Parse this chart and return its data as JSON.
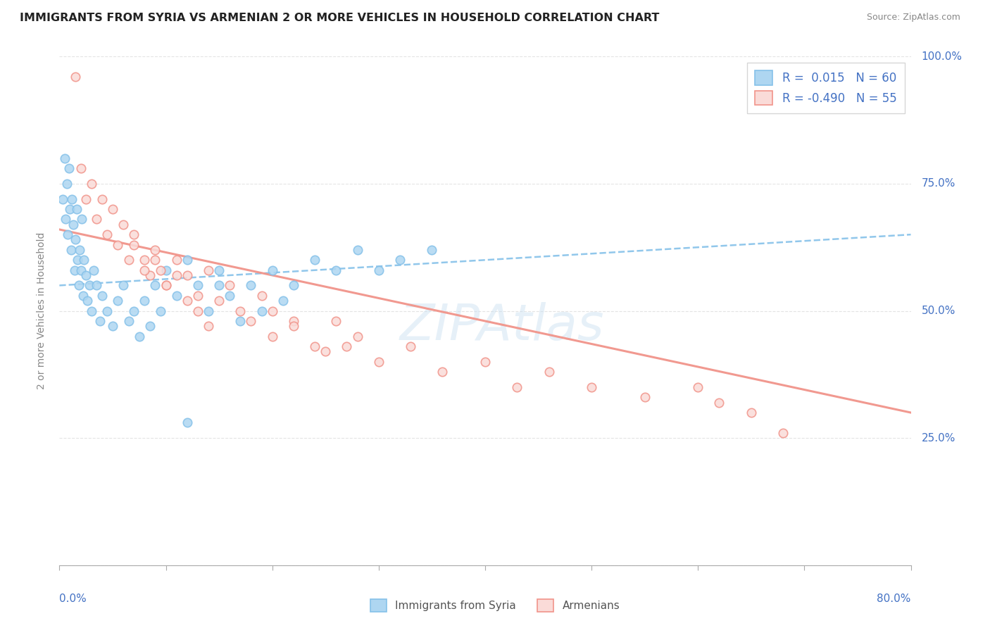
{
  "title": "IMMIGRANTS FROM SYRIA VS ARMENIAN 2 OR MORE VEHICLES IN HOUSEHOLD CORRELATION CHART",
  "source": "Source: ZipAtlas.com",
  "xlim": [
    0.0,
    80.0
  ],
  "ylim": [
    0.0,
    100.0
  ],
  "ylabel": "2 or more Vehicles in Household",
  "legend_labels": [
    "Immigrants from Syria",
    "Armenians"
  ],
  "legend_R": [
    0.015,
    -0.49
  ],
  "legend_N": [
    60,
    55
  ],
  "blue_color": "#85C1E9",
  "pink_color": "#F1948A",
  "blue_fill": "#AED6F1",
  "pink_fill": "#FADBD8",
  "text_color": "#4472c4",
  "watermark": "ZIPAtlas",
  "blue_scatter_x": [
    0.3,
    0.5,
    0.6,
    0.7,
    0.8,
    0.9,
    1.0,
    1.1,
    1.2,
    1.3,
    1.4,
    1.5,
    1.6,
    1.7,
    1.8,
    1.9,
    2.0,
    2.1,
    2.2,
    2.3,
    2.5,
    2.6,
    2.8,
    3.0,
    3.2,
    3.5,
    3.8,
    4.0,
    4.5,
    5.0,
    5.5,
    6.0,
    6.5,
    7.0,
    7.5,
    8.0,
    8.5,
    9.0,
    9.5,
    10.0,
    11.0,
    12.0,
    13.0,
    14.0,
    15.0,
    16.0,
    17.0,
    18.0,
    19.0,
    20.0,
    21.0,
    22.0,
    24.0,
    26.0,
    28.0,
    30.0,
    32.0,
    35.0,
    12.0,
    15.0
  ],
  "blue_scatter_y": [
    72.0,
    80.0,
    68.0,
    75.0,
    65.0,
    78.0,
    70.0,
    62.0,
    72.0,
    67.0,
    58.0,
    64.0,
    70.0,
    60.0,
    55.0,
    62.0,
    58.0,
    68.0,
    53.0,
    60.0,
    57.0,
    52.0,
    55.0,
    50.0,
    58.0,
    55.0,
    48.0,
    53.0,
    50.0,
    47.0,
    52.0,
    55.0,
    48.0,
    50.0,
    45.0,
    52.0,
    47.0,
    55.0,
    50.0,
    58.0,
    53.0,
    60.0,
    55.0,
    50.0,
    58.0,
    53.0,
    48.0,
    55.0,
    50.0,
    58.0,
    52.0,
    55.0,
    60.0,
    58.0,
    62.0,
    58.0,
    60.0,
    62.0,
    28.0,
    55.0
  ],
  "pink_scatter_x": [
    1.5,
    2.0,
    2.5,
    3.0,
    3.5,
    4.0,
    4.5,
    5.0,
    5.5,
    6.0,
    6.5,
    7.0,
    8.0,
    8.5,
    9.0,
    9.5,
    10.0,
    11.0,
    12.0,
    13.0,
    14.0,
    15.0,
    16.0,
    17.0,
    18.0,
    19.0,
    20.0,
    22.0,
    25.0,
    28.0,
    30.0,
    33.0,
    36.0,
    40.0,
    43.0,
    46.0,
    50.0,
    55.0,
    60.0,
    62.0,
    65.0,
    68.0,
    20.0,
    22.0,
    24.0,
    26.0,
    27.0,
    7.0,
    8.0,
    9.0,
    10.0,
    11.0,
    12.0,
    13.0,
    14.0
  ],
  "pink_scatter_y": [
    96.0,
    78.0,
    72.0,
    75.0,
    68.0,
    72.0,
    65.0,
    70.0,
    63.0,
    67.0,
    60.0,
    65.0,
    60.0,
    57.0,
    62.0,
    58.0,
    55.0,
    60.0,
    57.0,
    53.0,
    58.0,
    52.0,
    55.0,
    50.0,
    48.0,
    53.0,
    45.0,
    48.0,
    42.0,
    45.0,
    40.0,
    43.0,
    38.0,
    40.0,
    35.0,
    38.0,
    35.0,
    33.0,
    35.0,
    32.0,
    30.0,
    26.0,
    50.0,
    47.0,
    43.0,
    48.0,
    43.0,
    63.0,
    58.0,
    60.0,
    55.0,
    57.0,
    52.0,
    50.0,
    47.0
  ],
  "blue_trend_start_y": 55.0,
  "blue_trend_end_y": 65.0,
  "pink_trend_start_y": 66.0,
  "pink_trend_end_y": 30.0
}
